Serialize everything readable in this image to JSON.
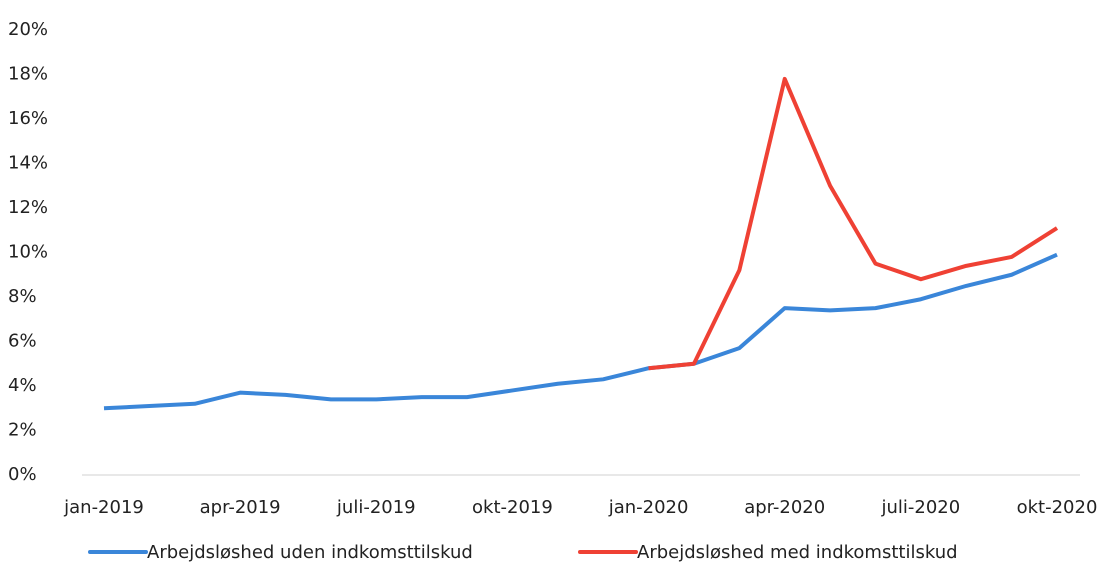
{
  "chart_data": {
    "type": "line",
    "categories": [
      "jan-2019",
      null,
      null,
      "apr-2019",
      null,
      null,
      "juli-2019",
      null,
      null,
      "okt-2019",
      null,
      null,
      "jan-2020",
      null,
      null,
      "apr-2020",
      null,
      null,
      "juli-2020",
      null,
      null,
      "okt-2020"
    ],
    "series": [
      {
        "name": "Arbejdsløshed uden indkomsttilskud",
        "color": "#3a86d9",
        "values": [
          3.0,
          3.1,
          3.2,
          3.7,
          3.6,
          3.4,
          3.4,
          3.5,
          3.5,
          3.8,
          4.1,
          4.3,
          4.8,
          5.0,
          5.7,
          7.5,
          7.4,
          7.5,
          7.9,
          8.5,
          9.0,
          9.9
        ]
      },
      {
        "name": "Arbejdsløshed med indkomsttilskud",
        "color": "#ef4134",
        "values": [
          null,
          null,
          null,
          null,
          null,
          null,
          null,
          null,
          null,
          null,
          null,
          null,
          4.8,
          5.0,
          9.2,
          17.8,
          13.0,
          9.5,
          8.8,
          9.4,
          9.8,
          11.1
        ]
      }
    ],
    "ylim": [
      0,
      20
    ],
    "yticks": [
      {
        "value": 0,
        "label": "0%"
      },
      {
        "value": 2,
        "label": "2%"
      },
      {
        "value": 4,
        "label": "4%"
      },
      {
        "value": 6,
        "label": "6%"
      },
      {
        "value": 8,
        "label": "8%"
      },
      {
        "value": 10,
        "label": "10%"
      },
      {
        "value": 12,
        "label": "12%"
      },
      {
        "value": 14,
        "label": "14%"
      },
      {
        "value": 16,
        "label": "16%"
      },
      {
        "value": 18,
        "label": "18%"
      },
      {
        "value": 20,
        "label": "20%"
      }
    ],
    "grid": false,
    "legend": "bottom"
  }
}
